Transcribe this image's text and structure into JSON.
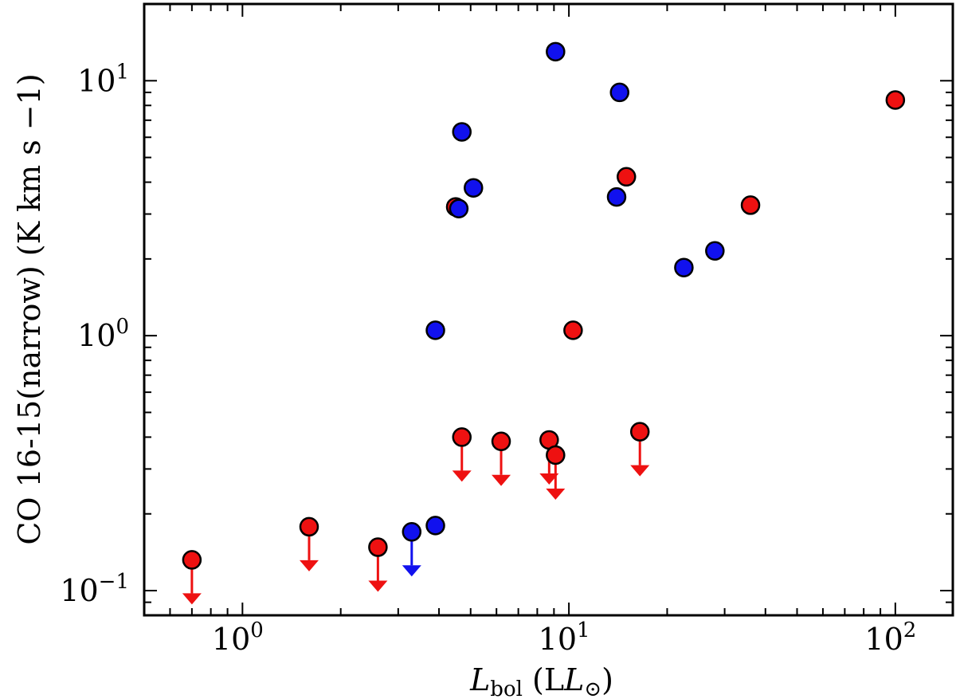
{
  "chart_data": {
    "type": "scatter",
    "xscale": "log",
    "yscale": "log",
    "xlim": [
      0.5,
      150
    ],
    "ylim": [
      0.08,
      20
    ],
    "x_ticks": [
      {
        "value": 1,
        "base": "10",
        "exp": "0"
      },
      {
        "value": 10,
        "base": "10",
        "exp": "1"
      },
      {
        "value": 100,
        "base": "10",
        "exp": "2"
      }
    ],
    "y_ticks": [
      {
        "value": 0.1,
        "base": "10",
        "exp": "−1"
      },
      {
        "value": 1,
        "base": "10",
        "exp": "0"
      },
      {
        "value": 10,
        "base": "10",
        "exp": "1"
      }
    ],
    "xlabel": {
      "main": "L",
      "sub": "bol",
      "rest": " (L",
      "sun": "⊙",
      "close": ")"
    },
    "ylabel": "CO 16-15(narrow) (K km s −1)",
    "colors": {
      "red": "#ee1111",
      "blue": "#1111ee",
      "outline": "#000000"
    },
    "series": [
      {
        "name": "red",
        "color": "#ee1111",
        "points": [
          {
            "x": 100,
            "y": 8.4
          },
          {
            "x": 36,
            "y": 3.25
          },
          {
            "x": 15,
            "y": 4.2
          },
          {
            "x": 10.3,
            "y": 1.05
          },
          {
            "x": 4.5,
            "y": 3.2
          }
        ],
        "upper_limits": [
          {
            "x": 0.7,
            "y": 0.132
          },
          {
            "x": 1.6,
            "y": 0.178
          },
          {
            "x": 2.6,
            "y": 0.148
          },
          {
            "x": 4.7,
            "y": 0.4
          },
          {
            "x": 6.2,
            "y": 0.385
          },
          {
            "x": 8.7,
            "y": 0.39
          },
          {
            "x": 9.1,
            "y": 0.34
          },
          {
            "x": 16.5,
            "y": 0.42
          }
        ]
      },
      {
        "name": "blue",
        "color": "#1111ee",
        "points": [
          {
            "x": 9.1,
            "y": 13.0
          },
          {
            "x": 14.3,
            "y": 9.0
          },
          {
            "x": 4.7,
            "y": 6.3
          },
          {
            "x": 5.1,
            "y": 3.8
          },
          {
            "x": 4.6,
            "y": 3.15
          },
          {
            "x": 14.0,
            "y": 3.5
          },
          {
            "x": 22.5,
            "y": 1.85
          },
          {
            "x": 28.0,
            "y": 2.15
          },
          {
            "x": 3.9,
            "y": 1.05
          },
          {
            "x": 3.9,
            "y": 0.18
          }
        ],
        "upper_limits": [
          {
            "x": 3.3,
            "y": 0.17
          }
        ]
      }
    ]
  }
}
